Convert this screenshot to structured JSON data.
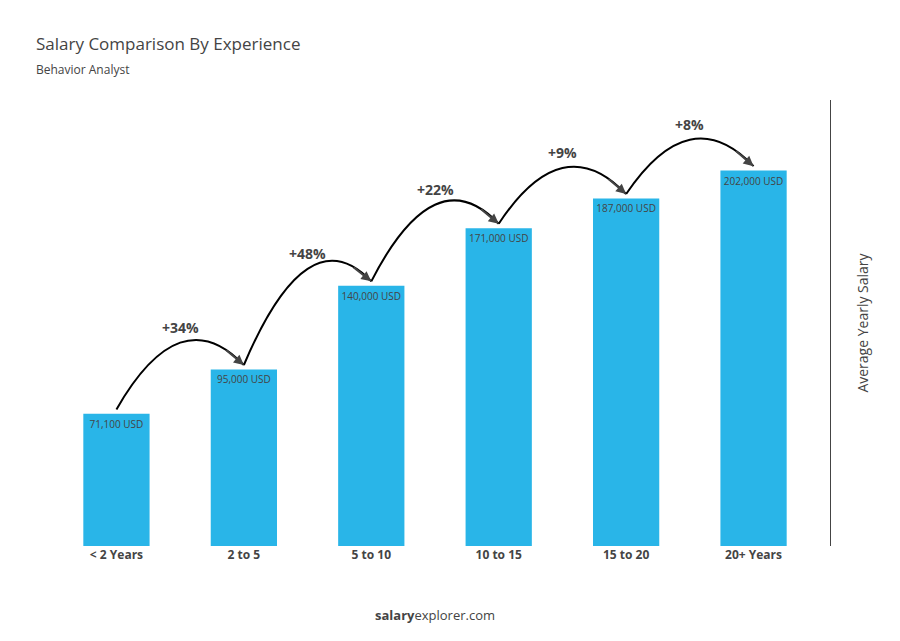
{
  "chart_data": {
    "type": "bar",
    "title": "Salary Comparison By Experience",
    "subtitle": "Behavior Analyst",
    "ylabel": "Average Yearly Salary",
    "categories": [
      "< 2 Years",
      "2 to 5",
      "5 to 10",
      "10 to 15",
      "15 to 20",
      "20+ Years"
    ],
    "values": [
      71100,
      95000,
      140000,
      171000,
      187000,
      202000
    ],
    "value_labels": [
      "71,100 USD",
      "95,000 USD",
      "140,000 USD",
      "171,000 USD",
      "187,000 USD",
      "202,000 USD"
    ],
    "data_labels": true,
    "annotations": [
      "+34%",
      "+48%",
      "+22%",
      "+9%",
      "+8%"
    ],
    "watermark": [
      "salary",
      "explorer.com"
    ],
    "color": "#29B5E8",
    "ylim": [
      0,
      240000
    ],
    "yticks": [],
    "tick_labels": "x",
    "grid": false
  }
}
